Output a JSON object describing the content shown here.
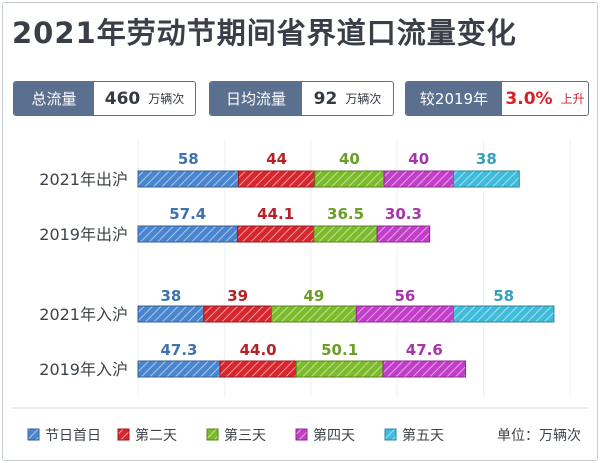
{
  "title": "2021年劳动节期间省界道口流量变化",
  "stats": [
    {
      "label": "总流量",
      "value": "460",
      "unit": "万辆次"
    },
    {
      "label": "日均流量",
      "value": "92",
      "unit": "万辆次"
    },
    {
      "label": "较2019年",
      "value": "3.0%",
      "unit": "上升"
    }
  ],
  "chart_data": {
    "type": "bar",
    "orientation": "horizontal",
    "stacked": true,
    "categories": [
      "2021年出沪",
      "2019年出沪",
      "2021年入沪",
      "2019年入沪"
    ],
    "series": [
      {
        "name": "节日首日",
        "color": "#4a86d0",
        "values": [
          58,
          57.4,
          38,
          47.3
        ],
        "labels": [
          "58",
          "57.4",
          "38",
          "47.3"
        ]
      },
      {
        "name": "第二天",
        "color": "#d8262e",
        "values": [
          44,
          44.1,
          39,
          44.0
        ],
        "labels": [
          "44",
          "44.1",
          "39",
          "44.0"
        ]
      },
      {
        "name": "第三天",
        "color": "#7cbb2a",
        "values": [
          40,
          36.5,
          49,
          50.1
        ],
        "labels": [
          "40",
          "36.5",
          "49",
          "50.1"
        ]
      },
      {
        "name": "第四天",
        "color": "#c23ec9",
        "values": [
          40,
          30.3,
          56,
          47.6
        ],
        "labels": [
          "40",
          "30.3",
          "56",
          "47.6"
        ]
      },
      {
        "name": "第五天",
        "color": "#3fbcdc",
        "values": [
          38,
          null,
          58,
          null
        ],
        "labels": [
          "38",
          "",
          "58",
          ""
        ]
      }
    ],
    "grid": true,
    "legend_position": "bottom",
    "unit_label": "单位：万辆次"
  }
}
